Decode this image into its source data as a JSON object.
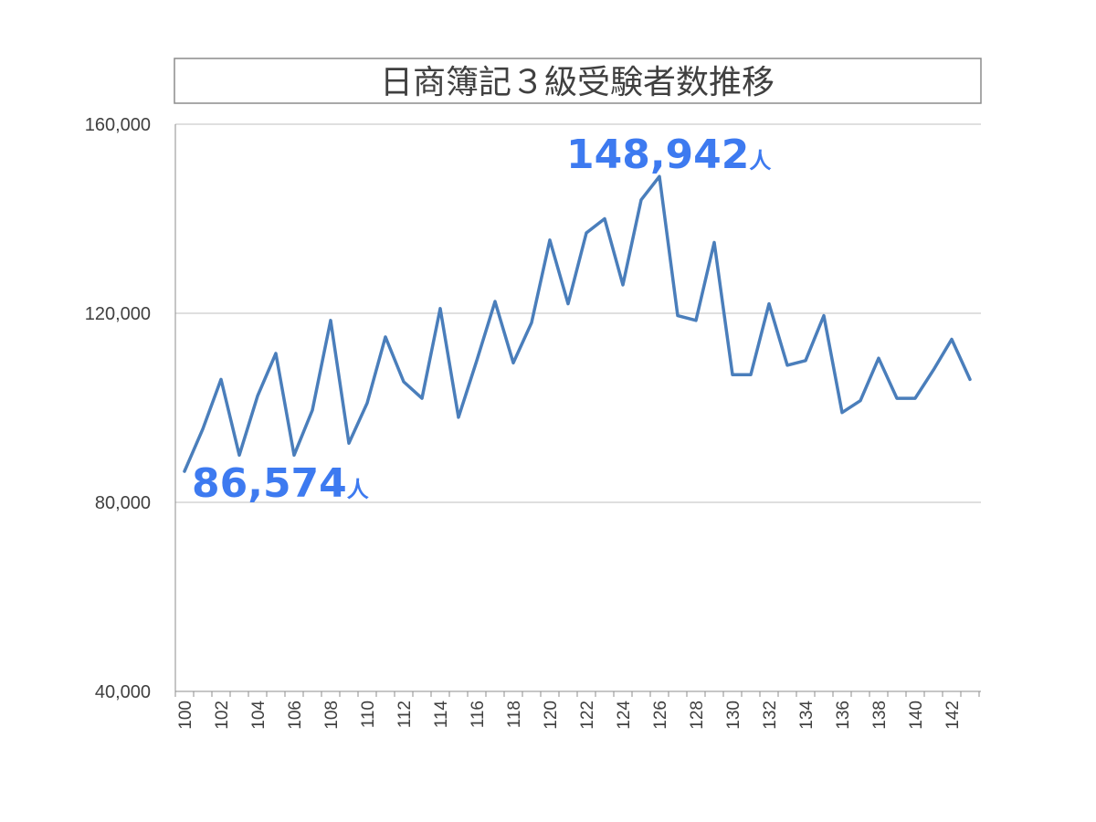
{
  "chart_data": {
    "type": "line",
    "title": "日商簿記３級受験者数推移",
    "xlabel": "",
    "ylabel": "",
    "x": [
      100,
      101,
      102,
      103,
      104,
      105,
      106,
      107,
      108,
      109,
      110,
      111,
      112,
      113,
      114,
      115,
      116,
      117,
      118,
      119,
      120,
      121,
      122,
      123,
      124,
      125,
      126,
      127,
      128,
      129,
      130,
      131,
      132,
      133,
      134,
      135,
      136,
      137,
      138,
      139,
      140,
      141,
      142,
      143
    ],
    "x_tick_labels": [
      "100",
      "102",
      "104",
      "106",
      "108",
      "110",
      "112",
      "114",
      "116",
      "118",
      "120",
      "122",
      "124",
      "126",
      "128",
      "130",
      "132",
      "134",
      "136",
      "138",
      "140",
      "142"
    ],
    "y_tick_labels": [
      "40,000",
      "80,000",
      "120,000",
      "160,000"
    ],
    "ylim": [
      40000,
      160000
    ],
    "yticks": [
      40000,
      80000,
      120000,
      160000
    ],
    "grid": "horizontal",
    "legend": "none",
    "series": [
      {
        "color": "#4a7ebb",
        "values": [
          86574,
          95500,
          106000,
          90000,
          102500,
          111500,
          90000,
          99500,
          118500,
          92500,
          101000,
          115000,
          105500,
          102000,
          121000,
          98000,
          110000,
          122500,
          109500,
          118000,
          135500,
          122000,
          137000,
          140000,
          126000,
          144000,
          148942,
          119500,
          118500,
          135000,
          107000,
          107000,
          122000,
          109000,
          110000,
          119500,
          99000,
          101500,
          110500,
          102000,
          102000,
          108000,
          114500,
          106000
        ]
      }
    ],
    "annotations": [
      {
        "target": "min",
        "number": "86,574",
        "unit": "人",
        "color": "#3d7af0"
      },
      {
        "target": "max",
        "number": "148,942",
        "unit": "人",
        "color": "#3d7af0"
      }
    ]
  }
}
